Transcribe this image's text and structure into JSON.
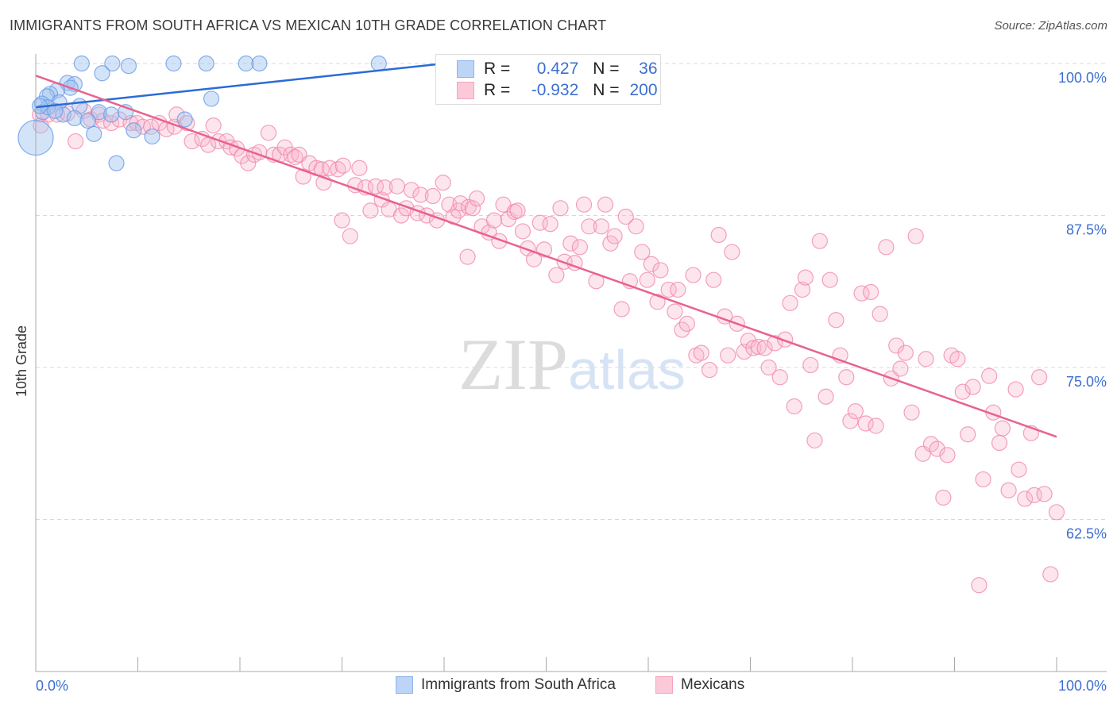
{
  "title": "IMMIGRANTS FROM SOUTH AFRICA VS MEXICAN 10TH GRADE CORRELATION CHART",
  "source": "Source: ZipAtlas.com",
  "watermark": "ZIPatlas",
  "legend": {
    "rows": [
      {
        "r_label": "R =",
        "r_value": "0.427",
        "n_label": "N =",
        "n_value": "36"
      },
      {
        "r_label": "R =",
        "r_value": "-0.932",
        "n_label": "N =",
        "n_value": "200"
      }
    ]
  },
  "chart_data": {
    "type": "scatter",
    "title": "IMMIGRANTS FROM SOUTH AFRICA VS MEXICAN 10TH GRADE CORRELATION CHART",
    "xlabel": "",
    "ylabel": "10th Grade",
    "xlim": [
      0,
      100
    ],
    "ylim": [
      50,
      100
    ],
    "x_tick_labels": [
      "0.0%",
      "100.0%"
    ],
    "y_ticks": [
      100,
      87.5,
      75,
      62.5
    ],
    "y_tick_labels": [
      "100.0%",
      "87.5%",
      "75.0%",
      "62.5%"
    ],
    "grid": true,
    "legend_position": "bottom",
    "series": [
      {
        "name": "Immigrants from South Africa",
        "color": "#6a9be8",
        "line_color": "#2a6bd6",
        "r": 0.427,
        "n": 36,
        "trend": {
          "x": [
            0,
            40
          ],
          "y": [
            96.4,
            100.0
          ]
        },
        "points": [
          [
            4.5,
            100
          ],
          [
            7.5,
            100
          ],
          [
            9.1,
            99.8
          ],
          [
            13.5,
            100
          ],
          [
            16.7,
            100
          ],
          [
            20.6,
            100
          ],
          [
            21.9,
            100
          ],
          [
            33.6,
            100
          ],
          [
            54.6,
            100.1
          ],
          [
            6.5,
            99.2
          ],
          [
            3.1,
            98.4
          ],
          [
            3.8,
            98.3
          ],
          [
            3.4,
            98.0
          ],
          [
            2.1,
            97.8
          ],
          [
            1.4,
            97.5
          ],
          [
            1.1,
            97.3
          ],
          [
            0.6,
            96.7
          ],
          [
            2.3,
            96.8
          ],
          [
            4.3,
            96.5
          ],
          [
            6.2,
            96.0
          ],
          [
            8.8,
            96.0
          ],
          [
            0.7,
            96.0
          ],
          [
            2.7,
            95.8
          ],
          [
            3.8,
            95.5
          ],
          [
            5.1,
            95.3
          ],
          [
            14.6,
            95.4
          ],
          [
            17.2,
            97.1
          ],
          [
            5.7,
            94.2
          ],
          [
            9.6,
            94.5
          ],
          [
            11.4,
            94.0
          ],
          [
            7.9,
            91.8
          ],
          [
            0,
            93.9,
            "big"
          ],
          [
            7.4,
            95.8
          ],
          [
            1.2,
            96.4
          ],
          [
            1.9,
            96.1
          ],
          [
            0.4,
            96.5
          ]
        ]
      },
      {
        "name": "Mexicans",
        "color": "#f08aaa",
        "line_color": "#e8628f",
        "r": -0.932,
        "n": 200,
        "trend": {
          "x": [
            0,
            100
          ],
          "y": [
            99.0,
            69.3
          ]
        },
        "points": [
          [
            0.4,
            95.8
          ],
          [
            0.5,
            94.9
          ],
          [
            1.2,
            95.8
          ],
          [
            2.1,
            95.8
          ],
          [
            3.1,
            95.9
          ],
          [
            3.9,
            93.6
          ],
          [
            4.7,
            96.1
          ],
          [
            5.4,
            95.4
          ],
          [
            6.2,
            95.8
          ],
          [
            6.6,
            95.3
          ],
          [
            7.4,
            95.1
          ],
          [
            8.2,
            95.4
          ],
          [
            9.3,
            95.1
          ],
          [
            9.9,
            95.1
          ],
          [
            10.5,
            94.8
          ],
          [
            11.3,
            94.8
          ],
          [
            12.1,
            95.1
          ],
          [
            12.8,
            94.6
          ],
          [
            13.6,
            94.8
          ],
          [
            13.8,
            95.8
          ],
          [
            14.8,
            95.1
          ],
          [
            15.3,
            93.6
          ],
          [
            16.3,
            93.8
          ],
          [
            16.9,
            93.3
          ],
          [
            17.4,
            94.9
          ],
          [
            17.9,
            93.6
          ],
          [
            18.7,
            93.6
          ],
          [
            19.1,
            93.1
          ],
          [
            19.7,
            93.0
          ],
          [
            20.2,
            92.4
          ],
          [
            20.8,
            91.8
          ],
          [
            21.4,
            92.5
          ],
          [
            21.9,
            92.7
          ],
          [
            22.8,
            94.3
          ],
          [
            23.3,
            92.5
          ],
          [
            23.9,
            92.5
          ],
          [
            24.4,
            93.1
          ],
          [
            25.0,
            92.5
          ],
          [
            25.4,
            92.3
          ],
          [
            25.8,
            92.5
          ],
          [
            26.2,
            90.7
          ],
          [
            26.8,
            91.8
          ],
          [
            27.5,
            91.4
          ],
          [
            28.0,
            91.3
          ],
          [
            28.2,
            90.2
          ],
          [
            28.8,
            91.4
          ],
          [
            29.6,
            91.3
          ],
          [
            30.1,
            91.6
          ],
          [
            30.0,
            87.1
          ],
          [
            30.8,
            85.8
          ],
          [
            31.3,
            90.0
          ],
          [
            31.7,
            91.4
          ],
          [
            32.3,
            89.8
          ],
          [
            32.8,
            87.9
          ],
          [
            33.3,
            89.9
          ],
          [
            33.9,
            88.8
          ],
          [
            34.2,
            89.8
          ],
          [
            34.6,
            88.0
          ],
          [
            35.4,
            89.9
          ],
          [
            35.8,
            87.5
          ],
          [
            36.3,
            88.1
          ],
          [
            36.8,
            89.6
          ],
          [
            37.4,
            87.7
          ],
          [
            37.7,
            89.2
          ],
          [
            38.3,
            87.5
          ],
          [
            38.9,
            89.1
          ],
          [
            39.3,
            87.1
          ],
          [
            39.9,
            90.2
          ],
          [
            40.5,
            88.4
          ],
          [
            40.9,
            87.4
          ],
          [
            41.4,
            87.9
          ],
          [
            41.6,
            88.5
          ],
          [
            42.3,
            84.1
          ],
          [
            42.4,
            88.2
          ],
          [
            42.8,
            88.1
          ],
          [
            43.2,
            88.9
          ],
          [
            43.7,
            86.6
          ],
          [
            44.4,
            86.1
          ],
          [
            44.9,
            87.1
          ],
          [
            45.4,
            85.4
          ],
          [
            45.8,
            88.4
          ],
          [
            46.3,
            87.2
          ],
          [
            46.9,
            87.8
          ],
          [
            47.2,
            87.9
          ],
          [
            47.7,
            86.2
          ],
          [
            48.2,
            84.8
          ],
          [
            48.8,
            83.9
          ],
          [
            49.4,
            86.9
          ],
          [
            49.8,
            84.7
          ],
          [
            50.4,
            86.8
          ],
          [
            51.0,
            82.6
          ],
          [
            51.4,
            88.1
          ],
          [
            51.8,
            83.7
          ],
          [
            52.4,
            85.2
          ],
          [
            52.8,
            83.6
          ],
          [
            53.3,
            84.9
          ],
          [
            53.7,
            88.4
          ],
          [
            54.2,
            86.6
          ],
          [
            54.9,
            82.1
          ],
          [
            55.4,
            86.6
          ],
          [
            55.8,
            88.4
          ],
          [
            56.3,
            85.2
          ],
          [
            56.7,
            85.8
          ],
          [
            57.4,
            79.8
          ],
          [
            57.8,
            87.4
          ],
          [
            58.2,
            82.1
          ],
          [
            58.8,
            86.6
          ],
          [
            59.4,
            84.5
          ],
          [
            59.9,
            82.2
          ],
          [
            60.3,
            83.5
          ],
          [
            60.9,
            80.4
          ],
          [
            61.2,
            83.0
          ],
          [
            62.0,
            81.4
          ],
          [
            62.6,
            79.6
          ],
          [
            62.9,
            81.4
          ],
          [
            63.3,
            78.1
          ],
          [
            63.8,
            78.6
          ],
          [
            64.4,
            82.6
          ],
          [
            64.7,
            76.0
          ],
          [
            65.2,
            76.2
          ],
          [
            66.0,
            74.8
          ],
          [
            66.4,
            82.2
          ],
          [
            66.9,
            85.9
          ],
          [
            67.5,
            79.2
          ],
          [
            67.8,
            76.0
          ],
          [
            68.2,
            84.5
          ],
          [
            68.7,
            78.6
          ],
          [
            69.4,
            76.3
          ],
          [
            69.8,
            77.2
          ],
          [
            70.3,
            76.6
          ],
          [
            70.8,
            76.7
          ],
          [
            71.4,
            76.6
          ],
          [
            71.8,
            75.0
          ],
          [
            72.4,
            77.0
          ],
          [
            72.9,
            74.2
          ],
          [
            73.4,
            77.3
          ],
          [
            73.9,
            80.3
          ],
          [
            74.3,
            71.8
          ],
          [
            75.1,
            81.4
          ],
          [
            75.4,
            82.4
          ],
          [
            75.9,
            75.2
          ],
          [
            76.3,
            69.0
          ],
          [
            76.8,
            85.4
          ],
          [
            77.4,
            72.6
          ],
          [
            77.8,
            82.2
          ],
          [
            78.4,
            78.9
          ],
          [
            78.8,
            76.0
          ],
          [
            79.4,
            74.2
          ],
          [
            79.8,
            70.6
          ],
          [
            80.3,
            71.4
          ],
          [
            80.9,
            81.1
          ],
          [
            81.3,
            70.4
          ],
          [
            81.8,
            81.2
          ],
          [
            82.3,
            70.2
          ],
          [
            82.7,
            79.4
          ],
          [
            83.3,
            84.9
          ],
          [
            83.8,
            74.1
          ],
          [
            84.3,
            76.8
          ],
          [
            84.7,
            74.9
          ],
          [
            85.2,
            76.2
          ],
          [
            85.8,
            71.3
          ],
          [
            86.2,
            85.8
          ],
          [
            86.9,
            67.9
          ],
          [
            87.2,
            75.7
          ],
          [
            87.7,
            68.7
          ],
          [
            88.3,
            68.3
          ],
          [
            88.9,
            64.3
          ],
          [
            89.3,
            67.8
          ],
          [
            89.7,
            76.0
          ],
          [
            90.3,
            75.7
          ],
          [
            90.8,
            73.0
          ],
          [
            91.3,
            69.5
          ],
          [
            91.8,
            73.4
          ],
          [
            92.8,
            65.8
          ],
          [
            93.4,
            74.3
          ],
          [
            93.8,
            71.3
          ],
          [
            94.4,
            68.8
          ],
          [
            94.7,
            70.0
          ],
          [
            95.3,
            64.9
          ],
          [
            96.0,
            73.2
          ],
          [
            96.3,
            66.6
          ],
          [
            96.9,
            64.2
          ],
          [
            97.5,
            69.6
          ],
          [
            97.8,
            64.5
          ],
          [
            98.3,
            74.2
          ],
          [
            98.8,
            64.6
          ],
          [
            99.4,
            58.0
          ],
          [
            100,
            63.1
          ],
          [
            92.4,
            57.1
          ]
        ]
      }
    ]
  }
}
